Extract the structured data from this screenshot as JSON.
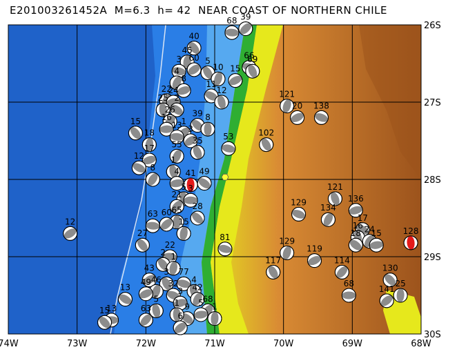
{
  "title": "E201003261452A  M=6.3  h= 42  NEAR COAST OF NORTHERN CHILE",
  "map": {
    "lon_range": [
      -74,
      -68
    ],
    "lat_range": [
      -30,
      -26
    ],
    "x_ticks": [
      "74W",
      "73W",
      "72W",
      "71W",
      "70W",
      "69W",
      "68W"
    ],
    "y_ticks": [
      "26S",
      "27S",
      "28S",
      "29S",
      "30S"
    ],
    "grid": true,
    "colors": {
      "deep_ocean": "#1f62c9",
      "ocean": "#2a7ee6",
      "shelf": "#56a9f0",
      "lowland": "#2fae32",
      "hills": "#e6e81c",
      "highland": "#d98b34",
      "peaks": "#9c531c",
      "trench_line": "#d8e4f4",
      "main_event": "#e41a1a",
      "beachball_dark": "#8c8c8c"
    }
  },
  "events": [
    {
      "lon": -71.35,
      "lat": -28.07,
      "label": "41",
      "main": true
    },
    {
      "lon": -70.55,
      "lat": -26.05,
      "label": "39"
    },
    {
      "lon": -70.75,
      "lat": -26.1,
      "label": "68"
    },
    {
      "lon": -71.3,
      "lat": -26.3,
      "label": "40"
    },
    {
      "lon": -71.4,
      "lat": -26.48,
      "label": "45"
    },
    {
      "lon": -71.3,
      "lat": -26.58,
      "label": "60"
    },
    {
      "lon": -71.52,
      "lat": -26.6,
      "label": "3"
    },
    {
      "lon": -71.1,
      "lat": -26.62,
      "label": "5"
    },
    {
      "lon": -70.95,
      "lat": -26.7,
      "label": "10"
    },
    {
      "lon": -70.7,
      "lat": -26.72,
      "label": "15"
    },
    {
      "lon": -70.5,
      "lat": -26.55,
      "label": "66"
    },
    {
      "lon": -70.45,
      "lat": -26.6,
      "label": "69"
    },
    {
      "lon": -71.55,
      "lat": -26.75,
      "label": "4"
    },
    {
      "lon": -71.45,
      "lat": -26.85,
      "label": "8"
    },
    {
      "lon": -71.05,
      "lat": -26.92,
      "label": "11"
    },
    {
      "lon": -70.9,
      "lat": -27.0,
      "label": "12"
    },
    {
      "lon": -71.7,
      "lat": -26.98,
      "label": "22"
    },
    {
      "lon": -71.6,
      "lat": -27.0,
      "label": "24"
    },
    {
      "lon": -71.55,
      "lat": -27.1,
      "label": "2"
    },
    {
      "lon": -71.75,
      "lat": -27.1,
      "label": "25"
    },
    {
      "lon": -71.65,
      "lat": -27.25,
      "label": "26"
    },
    {
      "lon": -71.7,
      "lat": -27.35,
      "label": "16"
    },
    {
      "lon": -71.25,
      "lat": -27.3,
      "label": "39"
    },
    {
      "lon": -71.1,
      "lat": -27.35,
      "label": "8"
    },
    {
      "lon": -71.45,
      "lat": -27.4,
      "label": "1"
    },
    {
      "lon": -71.55,
      "lat": -27.45,
      "label": "13"
    },
    {
      "lon": -72.15,
      "lat": -27.4,
      "label": "15"
    },
    {
      "lon": -71.95,
      "lat": -27.55,
      "label": "18"
    },
    {
      "lon": -71.35,
      "lat": -27.5,
      "label": "3"
    },
    {
      "lon": -70.8,
      "lat": -27.6,
      "label": "53"
    },
    {
      "lon": -70.25,
      "lat": -27.55,
      "label": "102"
    },
    {
      "lon": -69.95,
      "lat": -27.05,
      "label": "121"
    },
    {
      "lon": -69.8,
      "lat": -27.2,
      "label": "20"
    },
    {
      "lon": -69.45,
      "lat": -27.2,
      "label": "138"
    },
    {
      "lon": -71.25,
      "lat": -27.65,
      "label": "35"
    },
    {
      "lon": -71.55,
      "lat": -27.7,
      "label": "55"
    },
    {
      "lon": -71.95,
      "lat": -27.75,
      "label": "17"
    },
    {
      "lon": -72.1,
      "lat": -27.85,
      "label": "12"
    },
    {
      "lon": -71.6,
      "lat": -27.9,
      "label": "1"
    },
    {
      "lon": -71.9,
      "lat": -28.0,
      "label": "8"
    },
    {
      "lon": -71.55,
      "lat": -28.05,
      "label": "4"
    },
    {
      "lon": -71.15,
      "lat": -28.05,
      "label": "49"
    },
    {
      "lon": -71.45,
      "lat": -28.25,
      "label": "5"
    },
    {
      "lon": -71.55,
      "lat": -28.35,
      "label": "21"
    },
    {
      "lon": -71.35,
      "lat": -28.27,
      "label": "3"
    },
    {
      "lon": -71.25,
      "lat": -28.5,
      "label": "28"
    },
    {
      "lon": -71.55,
      "lat": -28.55,
      "label": "65"
    },
    {
      "lon": -71.7,
      "lat": -28.58,
      "label": "60"
    },
    {
      "lon": -71.9,
      "lat": -28.6,
      "label": "63"
    },
    {
      "lon": -72.05,
      "lat": -28.85,
      "label": "27"
    },
    {
      "lon": -71.45,
      "lat": -28.7,
      "label": "15"
    },
    {
      "lon": -73.1,
      "lat": -28.7,
      "label": "12"
    },
    {
      "lon": -70.85,
      "lat": -28.9,
      "label": "81"
    },
    {
      "lon": -70.15,
      "lat": -29.2,
      "label": "117"
    },
    {
      "lon": -69.95,
      "lat": -28.95,
      "label": "129"
    },
    {
      "lon": -69.55,
      "lat": -29.05,
      "label": "119"
    },
    {
      "lon": -69.78,
      "lat": -28.45,
      "label": "129"
    },
    {
      "lon": -69.25,
      "lat": -28.25,
      "label": "121"
    },
    {
      "lon": -69.35,
      "lat": -28.52,
      "label": "134"
    },
    {
      "lon": -68.95,
      "lat": -28.4,
      "label": "136"
    },
    {
      "lon": -68.85,
      "lat": -28.65,
      "label": "17"
    },
    {
      "lon": -68.92,
      "lat": -28.75,
      "label": "16"
    },
    {
      "lon": -68.75,
      "lat": -28.8,
      "label": "24"
    },
    {
      "lon": -68.65,
      "lat": -28.85,
      "label": "15"
    },
    {
      "lon": -68.95,
      "lat": -28.85,
      "label": "18"
    },
    {
      "lon": -68.15,
      "lat": -28.82,
      "label": "128",
      "main": true
    },
    {
      "lon": -69.15,
      "lat": -29.2,
      "label": "114"
    },
    {
      "lon": -69.05,
      "lat": -29.5,
      "label": "68"
    },
    {
      "lon": -68.45,
      "lat": -29.3,
      "label": "130"
    },
    {
      "lon": -68.3,
      "lat": -29.5,
      "label": "25"
    },
    {
      "lon": -68.5,
      "lat": -29.57,
      "label": "141"
    },
    {
      "lon": -71.65,
      "lat": -29.0,
      "label": "22"
    },
    {
      "lon": -71.75,
      "lat": -29.1,
      "label": "2"
    },
    {
      "lon": -71.6,
      "lat": -29.15,
      "label": "1"
    },
    {
      "lon": -71.95,
      "lat": -29.3,
      "label": "43"
    },
    {
      "lon": -71.45,
      "lat": -29.35,
      "label": "77"
    },
    {
      "lon": -71.7,
      "lat": -29.35,
      "label": "3"
    },
    {
      "lon": -71.85,
      "lat": -29.45,
      "label": "46"
    },
    {
      "lon": -72.0,
      "lat": -29.48,
      "label": "49"
    },
    {
      "lon": -71.6,
      "lat": -29.5,
      "label": "32"
    },
    {
      "lon": -71.3,
      "lat": -29.45,
      "label": "4"
    },
    {
      "lon": -71.25,
      "lat": -29.55,
      "label": "42"
    },
    {
      "lon": -71.5,
      "lat": -29.6,
      "label": "3"
    },
    {
      "lon": -72.3,
      "lat": -29.55,
      "label": "13"
    },
    {
      "lon": -71.85,
      "lat": -29.7,
      "label": "5"
    },
    {
      "lon": -71.1,
      "lat": -29.7,
      "label": "68"
    },
    {
      "lon": -71.2,
      "lat": -29.75,
      "label": "5"
    },
    {
      "lon": -71.4,
      "lat": -29.8,
      "label": "9"
    },
    {
      "lon": -71.55,
      "lat": -29.75,
      "label": "1"
    },
    {
      "lon": -72.0,
      "lat": -29.82,
      "label": "63"
    },
    {
      "lon": -72.5,
      "lat": -29.82,
      "label": "13"
    },
    {
      "lon": -72.6,
      "lat": -29.85,
      "label": "15"
    },
    {
      "lon": -71.0,
      "lat": -29.8,
      "label": "1"
    },
    {
      "lon": -71.5,
      "lat": -29.92,
      "label": "6"
    }
  ],
  "markers": [
    {
      "lon": -70.85,
      "lat": -27.97,
      "name": "yellow-hexagon"
    }
  ]
}
